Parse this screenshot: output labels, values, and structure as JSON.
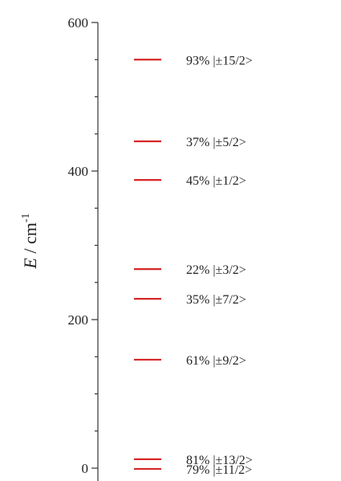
{
  "chart_data": {
    "type": "energy-level-diagram",
    "ylabel_symbol": "E",
    "ylabel_separator": " / ",
    "ylabel_unit": "cm",
    "ylabel_exponent": "-1",
    "ylim": [
      0,
      600
    ],
    "major_ticks": [
      0,
      200,
      400,
      600
    ],
    "minor_step": 50,
    "level_color": "#d62728",
    "levels": [
      {
        "energy": 550,
        "label": "93% |±15/2>"
      },
      {
        "energy": 440,
        "label": "37% |±5/2>"
      },
      {
        "energy": 388,
        "label": "45% |±1/2>"
      },
      {
        "energy": 268,
        "label": "22% |±3/2>"
      },
      {
        "energy": 228,
        "label": "35% |±7/2>"
      },
      {
        "energy": 146,
        "label": "61% |±9/2>"
      },
      {
        "energy": 12,
        "label": "81% |±13/2>"
      },
      {
        "energy": -1,
        "label": "79% |±11/2>"
      }
    ]
  }
}
